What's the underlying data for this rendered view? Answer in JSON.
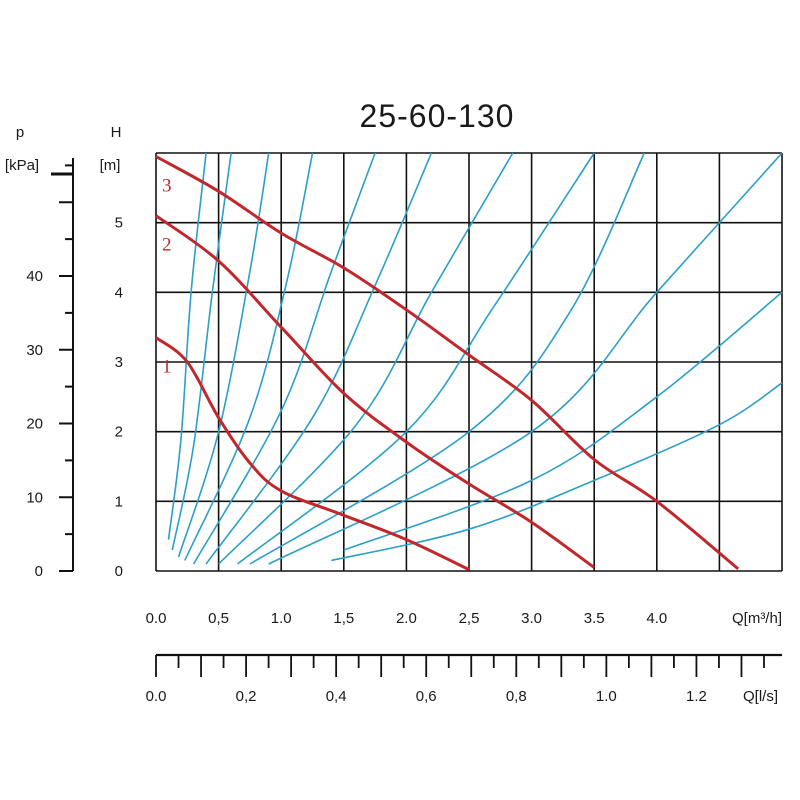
{
  "chart_data": {
    "type": "line",
    "title": "25-60-130",
    "colors": {
      "pump_curve": "#c0282d",
      "system_curve": "#2aa0c8",
      "grid": "#111111"
    },
    "grid": true,
    "x_axis_flow_m3h": {
      "label": "Q[m³/h]",
      "range": [
        0,
        5.0
      ],
      "tick_labels": [
        {
          "v": 0.0,
          "t": "0.0"
        },
        {
          "v": 0.5,
          "t": "0,5"
        },
        {
          "v": 1.0,
          "t": "1.0"
        },
        {
          "v": 1.5,
          "t": "1,5"
        },
        {
          "v": 2.0,
          "t": "2.0"
        },
        {
          "v": 2.5,
          "t": "2,5"
        },
        {
          "v": 3.0,
          "t": "3.0"
        },
        {
          "v": 3.5,
          "t": "3.5"
        },
        {
          "v": 4.0,
          "t": "4.0"
        }
      ]
    },
    "x_axis_flow_ls": {
      "label": "Q[l/s]",
      "range": [
        0,
        1.39
      ],
      "tick_labels": [
        {
          "v": 0.0,
          "t": "0.0"
        },
        {
          "v": 0.2,
          "t": "0,2"
        },
        {
          "v": 0.4,
          "t": "0,4"
        },
        {
          "v": 0.6,
          "t": "0,6"
        },
        {
          "v": 0.8,
          "t": "0,8"
        },
        {
          "v": 1.0,
          "t": "1.0"
        },
        {
          "v": 1.2,
          "t": "1.2"
        }
      ]
    },
    "y_axis_head_m": {
      "label_top": "H",
      "label_unit": "[m]",
      "range": [
        0,
        6
      ],
      "tick_labels": [
        "0",
        "1",
        "2",
        "3",
        "4",
        "5"
      ]
    },
    "y_axis_pressure_kpa": {
      "label_top": "p",
      "label_unit": "[kPa]",
      "range": [
        0,
        56
      ],
      "tick_labels": [
        "0",
        "10",
        "20",
        "30",
        "40"
      ]
    },
    "pump_curves": [
      {
        "name": "1",
        "points": [
          [
            0.0,
            3.35
          ],
          [
            0.25,
            3.0
          ],
          [
            0.5,
            2.2
          ],
          [
            0.75,
            1.55
          ],
          [
            1.0,
            1.15
          ],
          [
            1.5,
            0.8
          ],
          [
            2.0,
            0.45
          ],
          [
            2.5,
            0.02
          ]
        ]
      },
      {
        "name": "2",
        "points": [
          [
            0.0,
            5.1
          ],
          [
            0.5,
            4.45
          ],
          [
            1.0,
            3.5
          ],
          [
            1.5,
            2.55
          ],
          [
            2.0,
            1.85
          ],
          [
            2.5,
            1.25
          ],
          [
            3.0,
            0.7
          ],
          [
            3.5,
            0.05
          ]
        ]
      },
      {
        "name": "3",
        "points": [
          [
            0.0,
            5.95
          ],
          [
            0.5,
            5.45
          ],
          [
            1.0,
            4.85
          ],
          [
            1.5,
            4.35
          ],
          [
            2.0,
            3.75
          ],
          [
            2.5,
            3.1
          ],
          [
            3.0,
            2.45
          ],
          [
            3.5,
            1.6
          ],
          [
            4.0,
            1.0
          ],
          [
            4.65,
            0.03
          ]
        ]
      }
    ],
    "system_curves": [
      {
        "points": [
          [
            0.1,
            0.45
          ],
          [
            0.2,
            1.9
          ],
          [
            0.28,
            4.0
          ],
          [
            0.4,
            6.0
          ]
        ]
      },
      {
        "points": [
          [
            0.13,
            0.3
          ],
          [
            0.3,
            1.8
          ],
          [
            0.45,
            4.0
          ],
          [
            0.6,
            6.0
          ]
        ]
      },
      {
        "points": [
          [
            0.18,
            0.2
          ],
          [
            0.5,
            2.0
          ],
          [
            0.75,
            4.3
          ],
          [
            0.9,
            6.0
          ]
        ]
      },
      {
        "points": [
          [
            0.23,
            0.15
          ],
          [
            0.75,
            2.2
          ],
          [
            1.05,
            4.2
          ],
          [
            1.25,
            6.0
          ]
        ]
      },
      {
        "points": [
          [
            0.3,
            0.1
          ],
          [
            1.0,
            2.3
          ],
          [
            1.4,
            4.3
          ],
          [
            1.75,
            6.0
          ]
        ]
      },
      {
        "points": [
          [
            0.4,
            0.1
          ],
          [
            1.25,
            2.2
          ],
          [
            1.75,
            4.1
          ],
          [
            2.2,
            6.0
          ]
        ]
      },
      {
        "points": [
          [
            0.5,
            0.1
          ],
          [
            1.6,
            2.1
          ],
          [
            2.2,
            4.0
          ],
          [
            2.85,
            6.0
          ]
        ]
      },
      {
        "points": [
          [
            0.65,
            0.1
          ],
          [
            2.0,
            2.0
          ],
          [
            2.7,
            3.8
          ],
          [
            3.5,
            6.0
          ]
        ]
      },
      {
        "points": [
          [
            0.75,
            0.1
          ],
          [
            2.5,
            2.0
          ],
          [
            3.3,
            3.7
          ],
          [
            3.9,
            6.0
          ]
        ]
      },
      {
        "points": [
          [
            0.9,
            0.1
          ],
          [
            3.0,
            2.0
          ],
          [
            4.0,
            4.0
          ],
          [
            5.0,
            6.0
          ]
        ]
      },
      {
        "points": [
          [
            1.5,
            0.3
          ],
          [
            3.0,
            1.3
          ],
          [
            4.0,
            2.5
          ],
          [
            5.0,
            4.0
          ]
        ]
      },
      {
        "points": [
          [
            1.4,
            0.15
          ],
          [
            2.5,
            0.6
          ],
          [
            3.5,
            1.3
          ],
          [
            4.5,
            2.1
          ],
          [
            5.0,
            2.7
          ]
        ]
      }
    ]
  }
}
